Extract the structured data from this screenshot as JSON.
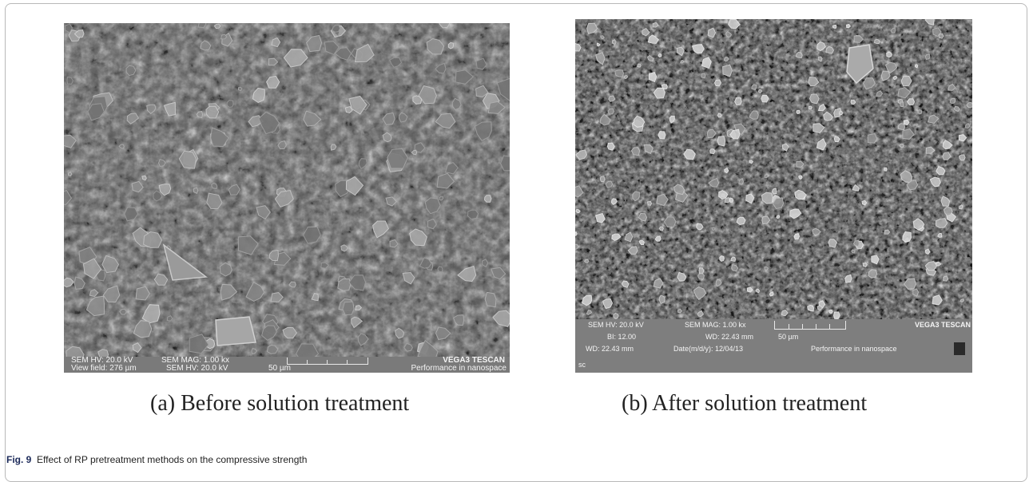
{
  "panel_a": {
    "bar_row1": {
      "hv": "SEM HV: 20.0 kV",
      "mag": "SEM MAG: 1.00 kx",
      "brand": "VEGA3 TESCAN"
    },
    "bar_row2": {
      "view_field": "View field: 276 µm",
      "hv": "SEM HV: 20.0 kV",
      "scale": "50 µm",
      "slogan": "Performance in nanospace"
    },
    "caption": "(a) Before solution treatment"
  },
  "panel_b": {
    "bar_row1": {
      "hv": "SEM HV: 20.0 kV",
      "mag": "SEM MAG: 1.00 kx",
      "brand": "VEGA3 TESCAN"
    },
    "bar_row2": {
      "bi": "BI: 12.00",
      "wd": "WD: 22.43 mm",
      "scale": "50 µm"
    },
    "bar_row3": {
      "wd": "WD: 22.43 mm",
      "date": "Date(m/d/y): 12/04/13",
      "slogan": "Performance in nanospace"
    },
    "corner": "sc",
    "caption": "(b) After solution treatment"
  },
  "figure": {
    "label": "Fig. 9",
    "text": "Effect of RP pretreatment methods on the compressive strength"
  },
  "colors": {
    "sem_base": "#5d5d5d",
    "data_bar": "#7a7a7a",
    "fig_label": "#1c2a5a"
  }
}
